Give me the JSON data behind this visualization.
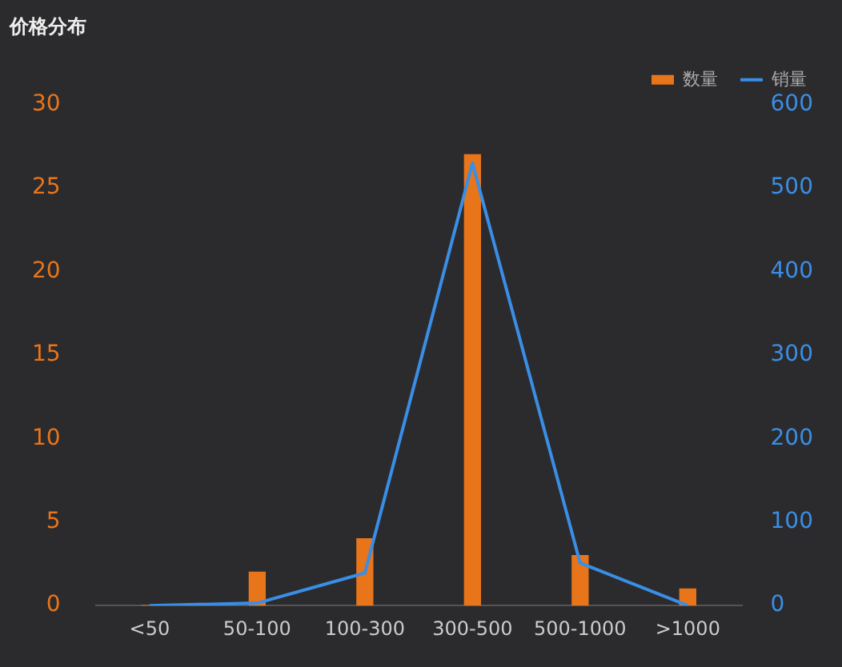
{
  "chart_data": {
    "type": "bar",
    "title": "价格分布",
    "categories": [
      "<50",
      "50-100",
      "100-300",
      "300-500",
      "500-1000",
      ">1000"
    ],
    "series": [
      {
        "name": "数量",
        "color": "#e8751a",
        "values": [
          0,
          2,
          4,
          27,
          3,
          1
        ]
      },
      {
        "name": "销量",
        "type": "line",
        "axis": "y2",
        "color": "#3a8ee6",
        "values": [
          0,
          3,
          39,
          530,
          51,
          0
        ]
      }
    ],
    "ylim": [
      0,
      30
    ],
    "yticks": [
      0,
      5,
      10,
      15,
      20,
      25,
      30
    ],
    "y2lim": [
      0,
      600
    ],
    "y2ticks": [
      0,
      100,
      200,
      300,
      400,
      500,
      600
    ],
    "grid": false,
    "legend": "top right",
    "marker": "none"
  }
}
